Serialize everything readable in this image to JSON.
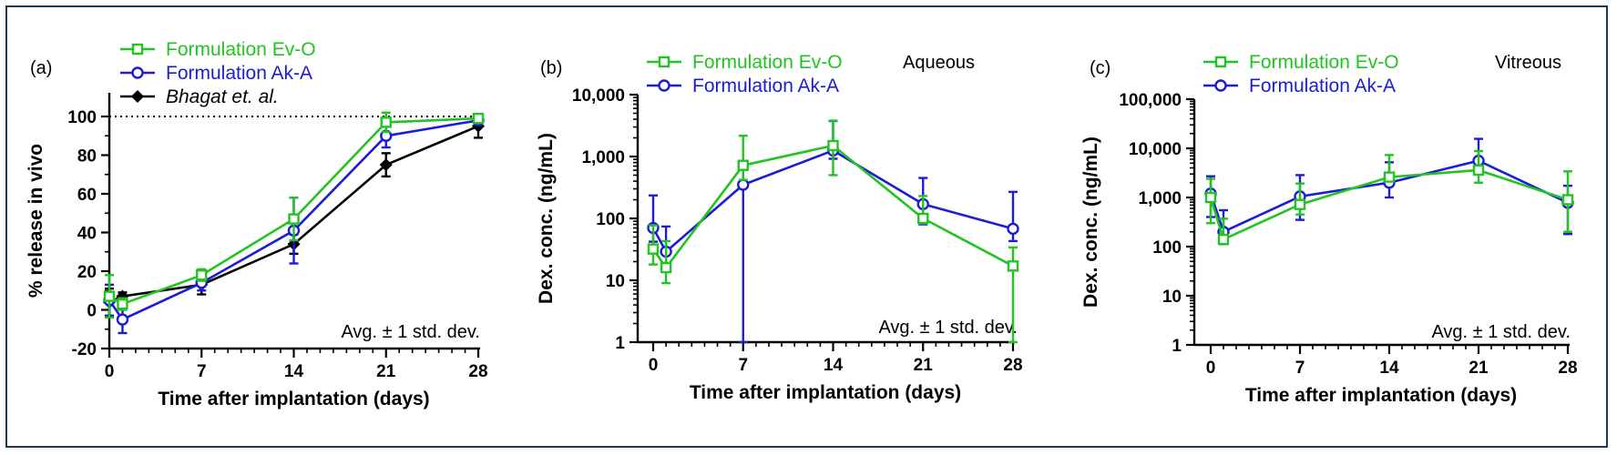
{
  "chart_data": [
    {
      "type": "line",
      "panel_label": "(a)",
      "title": "",
      "xlabel": "Time after implantation (days)",
      "ylabel": "% release in vivo",
      "xlim": [
        -0.5,
        28
      ],
      "ylim": [
        -20,
        110
      ],
      "yscale": "linear",
      "x_ticks": [
        0,
        7,
        14,
        21,
        28
      ],
      "x_tick_labels": [
        "0",
        "7",
        "14",
        "21",
        "28"
      ],
      "y_ticks": [
        -20,
        0,
        20,
        40,
        60,
        80,
        100
      ],
      "y_tick_labels": [
        "-20",
        "0",
        "20",
        "40",
        "60",
        "80",
        "100"
      ],
      "reference_line": {
        "y": 100,
        "style": "dotted"
      },
      "annotation": "Avg. ± 1 std. dev.",
      "legend_position": "top-left",
      "series": [
        {
          "name": "Formulation Ev-O",
          "color": "#22c322",
          "marker": "square",
          "x": [
            0,
            1,
            7,
            14,
            21,
            28
          ],
          "y": [
            7,
            3,
            18,
            47,
            97,
            99
          ],
          "err": [
            11,
            3,
            3,
            11,
            5,
            2
          ]
        },
        {
          "name": "Formulation Ak-A",
          "color": "#1c1cd6",
          "marker": "circle",
          "x": [
            0,
            1,
            7,
            14,
            21,
            28
          ],
          "y": [
            5,
            -5,
            14,
            41,
            90,
            98
          ],
          "err": [
            8,
            7,
            4,
            17,
            6,
            2
          ]
        },
        {
          "name": "Bhagat et. al.",
          "italic": true,
          "color": "#000000",
          "marker": "diamond",
          "x": [
            0,
            1,
            7,
            14,
            21,
            28
          ],
          "y": [
            4,
            7,
            13,
            34,
            75,
            95
          ],
          "err": [
            7,
            2,
            5,
            5,
            6,
            6
          ]
        }
      ]
    },
    {
      "type": "line",
      "panel_label": "(b)",
      "title": "Aqueous",
      "xlabel": "Time after implantation (days)",
      "ylabel": "Dex. conc. (ng/mL)",
      "xlim": [
        -0.5,
        28
      ],
      "ylim": [
        1,
        10000
      ],
      "yscale": "log",
      "x_ticks": [
        0,
        7,
        14,
        21,
        28
      ],
      "x_tick_labels": [
        "0",
        "7",
        "14",
        "21",
        "28"
      ],
      "y_ticks": [
        1,
        10,
        100,
        1000,
        10000
      ],
      "y_tick_labels": [
        "1",
        "10",
        "100",
        "1,000",
        "10,000"
      ],
      "annotation": "Avg. ± 1 std. dev.",
      "legend_position": "top-left",
      "series": [
        {
          "name": "Formulation Ev-O",
          "color": "#22c322",
          "marker": "square",
          "x": [
            0,
            1,
            7,
            14,
            21,
            28
          ],
          "y": [
            32,
            16,
            720,
            1500,
            100,
            17
          ],
          "err_low": [
            14,
            7,
            300,
            1000,
            17,
            17
          ],
          "err_high": [
            45,
            27,
            1450,
            2300,
            130,
            17
          ]
        },
        {
          "name": "Formulation Ak-A",
          "color": "#1c1cd6",
          "marker": "circle",
          "x": [
            0,
            1,
            7,
            14,
            21,
            28
          ],
          "y": [
            70,
            29,
            350,
            1250,
            170,
            68
          ],
          "err_low": [
            28,
            15,
            350,
            330,
            90,
            25
          ],
          "err_high": [
            165,
            45,
            350,
            2500,
            280,
            200
          ]
        }
      ]
    },
    {
      "type": "line",
      "panel_label": "(c)",
      "title": "Vitreous",
      "xlabel": "Time after implantation (days)",
      "ylabel": "Dex. conc. (ng/mL)",
      "xlim": [
        -0.5,
        28
      ],
      "ylim": [
        1,
        100000
      ],
      "yscale": "log",
      "x_ticks": [
        0,
        7,
        14,
        21,
        28
      ],
      "x_tick_labels": [
        "0",
        "7",
        "14",
        "21",
        "28"
      ],
      "y_ticks": [
        1,
        10,
        100,
        1000,
        10000,
        100000
      ],
      "y_tick_labels": [
        "1",
        "10",
        "100",
        "1,000",
        "10,000",
        "100,000"
      ],
      "annotation": "Avg. ± 1 std. dev.",
      "legend_position": "top-left",
      "series": [
        {
          "name": "Formulation Ev-O",
          "color": "#22c322",
          "marker": "square",
          "x": [
            0,
            1,
            7,
            14,
            21,
            28
          ],
          "y": [
            1000,
            140,
            720,
            2600,
            3600,
            900
          ],
          "err_low": [
            700,
            28,
            270,
            140,
            1600,
            700
          ],
          "err_high": [
            1400,
            230,
            1200,
            4700,
            5200,
            2500
          ]
        },
        {
          "name": "Formulation Ak-A",
          "color": "#1c1cd6",
          "marker": "circle",
          "x": [
            0,
            1,
            7,
            14,
            21,
            28
          ],
          "y": [
            1200,
            200,
            1050,
            2000,
            5600,
            780
          ],
          "err_low": [
            800,
            3,
            700,
            1000,
            1100,
            600
          ],
          "err_high": [
            1500,
            350,
            1800,
            3200,
            10000,
            950
          ]
        }
      ]
    }
  ]
}
